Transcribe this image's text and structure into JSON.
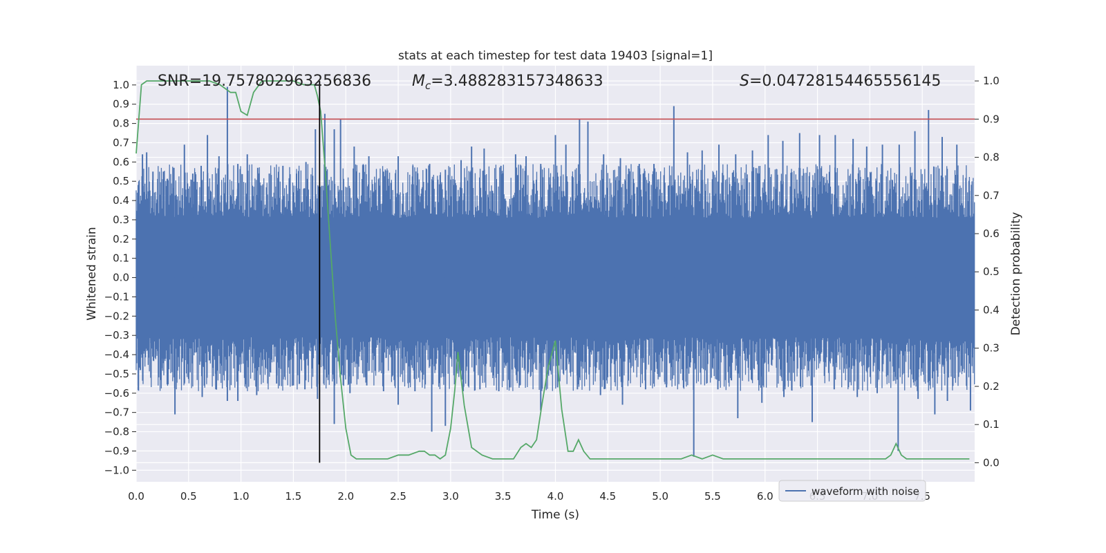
{
  "chart_data": {
    "type": "line",
    "title": "stats at each timestep for test data 19403 [signal=1]",
    "xlabel": "Time (s)",
    "ylabel": "Whitened strain",
    "ylabel_right": "Detection probability",
    "xlim": [
      0.0,
      8.0
    ],
    "ylim": [
      -1.06,
      1.1
    ],
    "ylim_right": [
      -0.05,
      1.04
    ],
    "x_ticks": [
      "0.0",
      "0.5",
      "1.0",
      "1.5",
      "2.0",
      "2.5",
      "3.0",
      "3.5",
      "4.0",
      "4.5",
      "5.0",
      "5.5",
      "6.0",
      "6.5",
      "7.0",
      "7.5"
    ],
    "y_ticks": [
      "1.0",
      "0.9",
      "0.8",
      "0.7",
      "0.6",
      "0.5",
      "0.4",
      "0.3",
      "0.2",
      "0.1",
      "0.0",
      "−0.1",
      "−0.2",
      "−0.3",
      "−0.4",
      "−0.5",
      "−0.6",
      "−0.7",
      "−0.8",
      "−0.9",
      "−1.0"
    ],
    "y_tick_values": [
      1.0,
      0.9,
      0.8,
      0.7,
      0.6,
      0.5,
      0.4,
      0.3,
      0.2,
      0.1,
      0.0,
      -0.1,
      -0.2,
      -0.3,
      -0.4,
      -0.5,
      -0.6,
      -0.7,
      -0.8,
      -0.9,
      -1.0
    ],
    "y2_ticks": [
      "1.0",
      "0.9",
      "0.8",
      "0.7",
      "0.6",
      "0.5",
      "0.4",
      "0.3",
      "0.2",
      "0.1",
      "0.0"
    ],
    "y2_tick_values": [
      1.0,
      0.9,
      0.8,
      0.7,
      0.6,
      0.5,
      0.4,
      0.3,
      0.2,
      0.1,
      0.0
    ],
    "annotations": {
      "snr": "SNR=19.757802963256836",
      "mc_symbol": "M",
      "mc_subscript": "c",
      "mc_value": "=3.488283157348633",
      "s_symbol": "S",
      "s_value": "=0.04728154465556145"
    },
    "legend": {
      "label": "waveform with noise",
      "placement": "lower-right"
    },
    "threshold_probability": 0.9,
    "marker_time": 1.75,
    "waveform": {
      "name": "waveform with noise",
      "color": "#4c72b0",
      "band_envelope": 0.28,
      "peaks": [
        {
          "t": 0.06,
          "v": 0.64
        },
        {
          "t": 0.1,
          "v": 0.65
        },
        {
          "t": 0.16,
          "v": 0.55
        },
        {
          "t": 0.26,
          "v": 0.55
        },
        {
          "t": 0.36,
          "v": 0.57
        },
        {
          "t": 0.46,
          "v": 0.69
        },
        {
          "t": 0.54,
          "v": 0.54
        },
        {
          "t": 0.62,
          "v": 0.58
        },
        {
          "t": 0.68,
          "v": 0.74
        },
        {
          "t": 0.79,
          "v": 0.63
        },
        {
          "t": 0.87,
          "v": 0.99
        },
        {
          "t": 0.97,
          "v": 0.59
        },
        {
          "t": 1.06,
          "v": 0.64
        },
        {
          "t": 1.16,
          "v": 0.57
        },
        {
          "t": 1.27,
          "v": 0.54
        },
        {
          "t": 1.4,
          "v": 0.58
        },
        {
          "t": 1.53,
          "v": 0.54
        },
        {
          "t": 1.62,
          "v": 0.6
        },
        {
          "t": 1.71,
          "v": 0.77
        },
        {
          "t": 1.8,
          "v": 0.85
        },
        {
          "t": 1.89,
          "v": 0.77
        },
        {
          "t": 1.95,
          "v": 0.82
        },
        {
          "t": 2.08,
          "v": 0.68
        },
        {
          "t": 2.22,
          "v": 0.63
        },
        {
          "t": 2.36,
          "v": 0.55
        },
        {
          "t": 2.5,
          "v": 0.63
        },
        {
          "t": 2.64,
          "v": 0.58
        },
        {
          "t": 2.8,
          "v": 0.59
        },
        {
          "t": 2.95,
          "v": 0.56
        },
        {
          "t": 3.1,
          "v": 0.61
        },
        {
          "t": 3.2,
          "v": 0.68
        },
        {
          "t": 3.32,
          "v": 0.67
        },
        {
          "t": 3.48,
          "v": 0.58
        },
        {
          "t": 3.62,
          "v": 0.64
        },
        {
          "t": 3.72,
          "v": 0.63
        },
        {
          "t": 3.86,
          "v": 0.59
        },
        {
          "t": 4.0,
          "v": 0.74
        },
        {
          "t": 4.1,
          "v": 0.69
        },
        {
          "t": 4.23,
          "v": 0.82
        },
        {
          "t": 4.31,
          "v": 0.81
        },
        {
          "t": 4.46,
          "v": 0.64
        },
        {
          "t": 4.62,
          "v": 0.62
        },
        {
          "t": 4.8,
          "v": 0.59
        },
        {
          "t": 4.94,
          "v": 0.59
        },
        {
          "t": 5.13,
          "v": 0.89
        },
        {
          "t": 5.26,
          "v": 0.65
        },
        {
          "t": 5.4,
          "v": 0.66
        },
        {
          "t": 5.56,
          "v": 0.69
        },
        {
          "t": 5.72,
          "v": 0.64
        },
        {
          "t": 5.88,
          "v": 0.66
        },
        {
          "t": 6.03,
          "v": 0.74
        },
        {
          "t": 6.17,
          "v": 0.71
        },
        {
          "t": 6.33,
          "v": 0.75
        },
        {
          "t": 6.52,
          "v": 0.74
        },
        {
          "t": 6.67,
          "v": 0.74
        },
        {
          "t": 6.84,
          "v": 0.72
        },
        {
          "t": 6.97,
          "v": 0.68
        },
        {
          "t": 7.12,
          "v": 0.69
        },
        {
          "t": 7.28,
          "v": 0.69
        },
        {
          "t": 7.43,
          "v": 0.76
        },
        {
          "t": 7.56,
          "v": 0.87
        },
        {
          "t": 7.69,
          "v": 0.73
        },
        {
          "t": 7.83,
          "v": 0.69
        },
        {
          "t": 7.95,
          "v": 0.45
        }
      ],
      "troughs": [
        {
          "t": 0.04,
          "v": -0.48
        },
        {
          "t": 0.14,
          "v": -0.52
        },
        {
          "t": 0.24,
          "v": -0.47
        },
        {
          "t": 0.37,
          "v": -0.71
        },
        {
          "t": 0.46,
          "v": -0.55
        },
        {
          "t": 0.63,
          "v": -0.62
        },
        {
          "t": 0.76,
          "v": -0.58
        },
        {
          "t": 0.87,
          "v": -0.64
        },
        {
          "t": 0.97,
          "v": -0.64
        },
        {
          "t": 1.15,
          "v": -0.61
        },
        {
          "t": 1.34,
          "v": -0.55
        },
        {
          "t": 1.5,
          "v": -0.56
        },
        {
          "t": 1.61,
          "v": -0.58
        },
        {
          "t": 1.73,
          "v": -0.63
        },
        {
          "t": 1.89,
          "v": -0.76
        },
        {
          "t": 2.04,
          "v": -0.6
        },
        {
          "t": 2.2,
          "v": -0.56
        },
        {
          "t": 2.36,
          "v": -0.59
        },
        {
          "t": 2.5,
          "v": -0.66
        },
        {
          "t": 2.66,
          "v": -0.59
        },
        {
          "t": 2.82,
          "v": -0.8
        },
        {
          "t": 2.95,
          "v": -0.77
        },
        {
          "t": 3.12,
          "v": -0.59
        },
        {
          "t": 3.28,
          "v": -0.58
        },
        {
          "t": 3.46,
          "v": -0.59
        },
        {
          "t": 3.66,
          "v": -0.56
        },
        {
          "t": 3.86,
          "v": -0.69
        },
        {
          "t": 4.02,
          "v": -0.57
        },
        {
          "t": 4.21,
          "v": -0.58
        },
        {
          "t": 4.43,
          "v": -0.61
        },
        {
          "t": 4.64,
          "v": -0.66
        },
        {
          "t": 4.86,
          "v": -0.58
        },
        {
          "t": 5.06,
          "v": -0.57
        },
        {
          "t": 5.32,
          "v": -0.93
        },
        {
          "t": 5.55,
          "v": -0.58
        },
        {
          "t": 5.74,
          "v": -0.73
        },
        {
          "t": 5.97,
          "v": -0.65
        },
        {
          "t": 6.18,
          "v": -0.62
        },
        {
          "t": 6.45,
          "v": -0.75
        },
        {
          "t": 6.66,
          "v": -0.58
        },
        {
          "t": 6.88,
          "v": -0.62
        },
        {
          "t": 7.07,
          "v": -0.6
        },
        {
          "t": 7.27,
          "v": -0.9
        },
        {
          "t": 7.46,
          "v": -0.63
        },
        {
          "t": 7.62,
          "v": -0.71
        },
        {
          "t": 7.74,
          "v": -0.64
        },
        {
          "t": 7.96,
          "v": -0.69
        }
      ]
    },
    "probability": {
      "color": "#55a868",
      "t": [
        0.0,
        0.05,
        0.1,
        0.2,
        0.3,
        0.4,
        0.5,
        0.6,
        0.7,
        0.8,
        0.9,
        0.95,
        1.0,
        1.06,
        1.12,
        1.2,
        1.3,
        1.4,
        1.5,
        1.6,
        1.7,
        1.73,
        1.76,
        1.8,
        1.85,
        1.9,
        1.95,
        2.0,
        2.05,
        2.1,
        2.2,
        2.3,
        2.4,
        2.5,
        2.6,
        2.7,
        2.75,
        2.8,
        2.85,
        2.9,
        2.95,
        3.0,
        3.04,
        3.07,
        3.13,
        3.2,
        3.3,
        3.4,
        3.5,
        3.6,
        3.67,
        3.72,
        3.77,
        3.82,
        3.87,
        3.93,
        4.0,
        4.06,
        4.12,
        4.17,
        4.22,
        4.27,
        4.33,
        4.4,
        4.5,
        4.7,
        4.85,
        4.95,
        5.1,
        5.2,
        5.3,
        5.4,
        5.5,
        5.6,
        5.7,
        6.0,
        6.2,
        6.4,
        6.7,
        7.0,
        7.15,
        7.2,
        7.25,
        7.3,
        7.35,
        7.45,
        7.55,
        7.7,
        7.8,
        7.88,
        7.95
      ],
      "p": [
        0.81,
        0.99,
        1.0,
        1.0,
        1.0,
        1.0,
        1.0,
        1.0,
        1.0,
        0.99,
        0.97,
        0.97,
        0.92,
        0.91,
        0.97,
        1.0,
        1.0,
        1.0,
        1.0,
        0.99,
        0.99,
        0.96,
        0.92,
        0.78,
        0.58,
        0.38,
        0.22,
        0.09,
        0.02,
        0.01,
        0.01,
        0.01,
        0.01,
        0.02,
        0.02,
        0.03,
        0.03,
        0.02,
        0.02,
        0.01,
        0.02,
        0.09,
        0.19,
        0.29,
        0.15,
        0.04,
        0.02,
        0.01,
        0.01,
        0.01,
        0.04,
        0.05,
        0.04,
        0.06,
        0.15,
        0.25,
        0.32,
        0.14,
        0.03,
        0.03,
        0.06,
        0.03,
        0.01,
        0.01,
        0.01,
        0.01,
        0.01,
        0.01,
        0.01,
        0.01,
        0.02,
        0.01,
        0.02,
        0.01,
        0.01,
        0.01,
        0.01,
        0.01,
        0.01,
        0.01,
        0.01,
        0.02,
        0.05,
        0.02,
        0.01,
        0.01,
        0.01,
        0.01,
        0.01,
        0.01,
        0.01
      ]
    }
  }
}
